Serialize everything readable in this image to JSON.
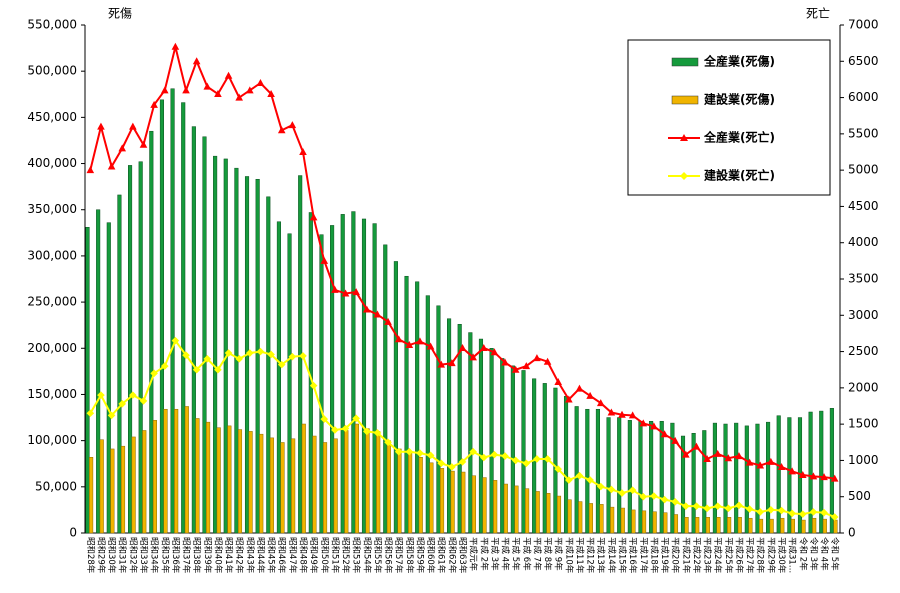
{
  "chart_data": {
    "type": "bar",
    "y_label": "死傷",
    "y2_label": "死亡",
    "categories": [
      "昭和28年",
      "昭和29年",
      "昭和30年",
      "昭和31年",
      "昭和32年",
      "昭和33年",
      "昭和34年",
      "昭和35年",
      "昭和36年",
      "昭和37年",
      "昭和38年",
      "昭和39年",
      "昭和40年",
      "昭和41年",
      "昭和42年",
      "昭和43年",
      "昭和44年",
      "昭和45年",
      "昭和46年",
      "昭和47年",
      "昭和48年",
      "昭和49年",
      "昭和50年",
      "昭和51年",
      "昭和52年",
      "昭和53年",
      "昭和54年",
      "昭和55年",
      "昭和56年",
      "昭和57年",
      "昭和58年",
      "昭和59年",
      "昭和60年",
      "昭和61年",
      "昭和62年",
      "昭和63年",
      "平成元年",
      "平成 2年",
      "平成 3年",
      "平成 4年",
      "平成 5年",
      "平成 6年",
      "平成 7年",
      "平成 8年",
      "平成 9年",
      "平成10年",
      "平成11年",
      "平成12年",
      "平成13年",
      "平成14年",
      "平成15年",
      "平成16年",
      "平成17年",
      "平成18年",
      "平成19年",
      "平成20年",
      "平成21年",
      "平成22年",
      "平成23年",
      "平成24年",
      "平成25年",
      "平成26年",
      "平成27年",
      "平成28年",
      "平成29年",
      "平成30年",
      "平成31…",
      "令和 2年",
      "令和 3年",
      "令和 4年",
      "令和 5年"
    ],
    "series": [
      {
        "name": "全産業(死傷)",
        "type": "bar",
        "color": "#159a3c",
        "values": [
          331000,
          350000,
          336000,
          366000,
          398000,
          402000,
          435000,
          469000,
          481000,
          466000,
          440000,
          429000,
          408000,
          405000,
          395000,
          386000,
          383000,
          364000,
          337000,
          324000,
          387000,
          347000,
          323000,
          333000,
          345000,
          348000,
          340000,
          335000,
          312000,
          294000,
          278000,
          272000,
          257000,
          246000,
          232000,
          226000,
          217000,
          210000,
          200000,
          189000,
          181000,
          176000,
          167000,
          162000,
          157000,
          148000,
          137000,
          134000,
          134000,
          125000,
          125000,
          122000,
          121000,
          121000,
          121000,
          119000,
          105000,
          108000,
          111000,
          119000,
          118000,
          119000,
          116000,
          118000,
          120000,
          127000,
          125000,
          125000,
          131000,
          132000,
          135000
        ]
      },
      {
        "name": "建設業(死傷)",
        "type": "bar",
        "color": "#f0b400",
        "values": [
          82000,
          101000,
          91000,
          94000,
          104000,
          111000,
          122000,
          134000,
          134000,
          137000,
          124000,
          120000,
          114000,
          116000,
          112000,
          110000,
          107000,
          103000,
          98000,
          102000,
          118000,
          105000,
          98000,
          102000,
          111000,
          118000,
          113000,
          110000,
          100000,
          91000,
          87000,
          82000,
          76000,
          70000,
          67000,
          66000,
          62000,
          60000,
          57000,
          53000,
          51000,
          48000,
          45000,
          43000,
          40000,
          36000,
          34000,
          32000,
          31000,
          28000,
          27000,
          25000,
          24000,
          23000,
          22000,
          20000,
          17000,
          17000,
          17000,
          17000,
          17000,
          17000,
          16000,
          15000,
          15000,
          16000,
          15000,
          14000,
          16000,
          15000,
          14000
        ]
      },
      {
        "name": "全産業(死亡)",
        "type": "line",
        "axis": "y2",
        "color": "#ff0000",
        "marker": "triangle",
        "values": [
          5000,
          5600,
          5050,
          5300,
          5600,
          5350,
          5900,
          6100,
          6700,
          6100,
          6500,
          6150,
          6050,
          6300,
          6000,
          6100,
          6200,
          6050,
          5550,
          5620,
          5250,
          4350,
          3750,
          3350,
          3300,
          3320,
          3080,
          3010,
          2910,
          2670,
          2590,
          2640,
          2570,
          2320,
          2340,
          2550,
          2420,
          2550,
          2490,
          2350,
          2250,
          2300,
          2410,
          2360,
          2080,
          1840,
          1990,
          1890,
          1790,
          1660,
          1630,
          1620,
          1510,
          1470,
          1360,
          1270,
          1080,
          1190,
          1020,
          1090,
          1030,
          1060,
          970,
          930,
          980,
          910,
          850,
          800,
          780,
          770,
          750
        ]
      },
      {
        "name": "建設業(死亡)",
        "type": "line",
        "axis": "y2",
        "color": "#ffff00",
        "marker": "diamond",
        "values": [
          1650,
          1900,
          1620,
          1780,
          1900,
          1820,
          2200,
          2300,
          2650,
          2450,
          2250,
          2400,
          2250,
          2480,
          2400,
          2480,
          2500,
          2460,
          2320,
          2430,
          2440,
          2030,
          1570,
          1420,
          1440,
          1580,
          1400,
          1380,
          1250,
          1120,
          1120,
          1100,
          1070,
          960,
          910,
          980,
          1120,
          1040,
          1080,
          1060,
          1000,
          960,
          1020,
          1020,
          880,
          730,
          790,
          730,
          640,
          600,
          550,
          590,
          500,
          510,
          460,
          430,
          370,
          370,
          340,
          370,
          340,
          380,
          330,
          290,
          320,
          310,
          270,
          260,
          290,
          280,
          220
        ]
      }
    ],
    "ylim": [
      0,
      550000
    ],
    "yticks": [
      0,
      {
        "value": 50000,
        "label": "50,000"
      },
      {
        "value": 100000,
        "label": "100,000"
      },
      {
        "value": 150000,
        "label": "150,000"
      },
      {
        "value": 200000,
        "label": "200,000"
      },
      {
        "value": 250000,
        "label": "250,000"
      },
      {
        "value": 300000,
        "label": "300,000"
      },
      {
        "value": 350000,
        "label": "350,000"
      },
      {
        "value": 400000,
        "label": "400,000"
      },
      {
        "value": 450000,
        "label": "450,000"
      },
      {
        "value": 500000,
        "label": "500,000"
      },
      {
        "value": 550000,
        "label": "550,000"
      }
    ],
    "y2lim": [
      0,
      7000
    ],
    "y2ticks": [
      0,
      500,
      1000,
      1500,
      2000,
      2500,
      3000,
      3500,
      4000,
      4500,
      5000,
      5500,
      6000,
      6500,
      7000
    ]
  }
}
